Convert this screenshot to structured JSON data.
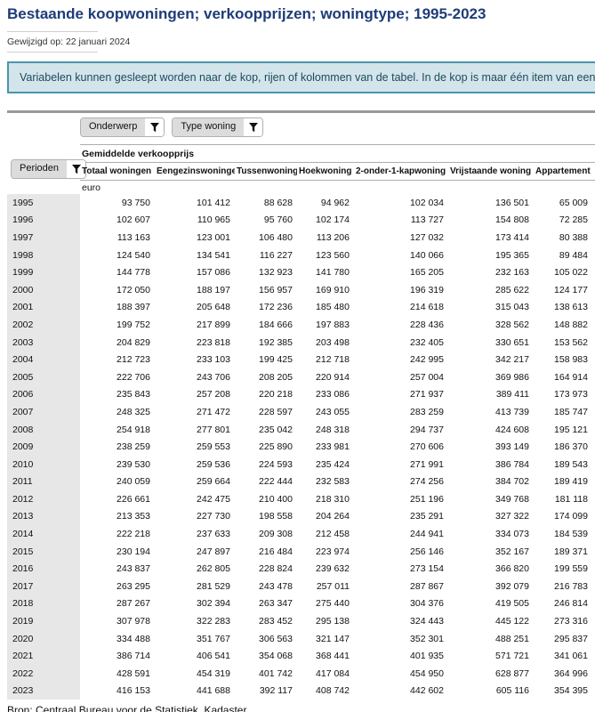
{
  "page": {
    "title": "Bestaande koopwoningen; verkoopprijzen; woningtype; 1995-2023",
    "modified": "Gewijzigd op: 22 januari 2024",
    "info_banner": "Variabelen kunnen gesleept worden naar de kop, rijen of kolommen van de tabel. In de kop is maar één item van een variabele te",
    "source": "Bron: Centraal Bureau voor de Statistiek, Kadaster"
  },
  "filters": {
    "onderwerp_label": "Onderwerp",
    "type_woning_label": "Type woning",
    "perioden_label": "Perioden",
    "filter_icon": "funnel-icon"
  },
  "colors": {
    "title_blue": "#1d3c78",
    "info_bg": "#d3e5eb",
    "info_border": "#4796ad",
    "info_text": "#1d4a5e",
    "row_label_bg": "#e7e7e7",
    "chip_bg": "#dcdcdc",
    "separator": "#999999"
  },
  "table": {
    "group_header": "Gemiddelde verkoopprijs",
    "unit": "euro",
    "row_dimension": "Perioden",
    "columns": [
      "Totaal woningen",
      "Eengezinswoningen",
      "Tussenwoning",
      "Hoekwoning",
      "2-onder-1-kapwoning",
      "Vrijstaande woning",
      "Appartement"
    ],
    "rows": [
      {
        "year": "1995",
        "values": [
          "93 750",
          "101 412",
          "88 628",
          "94 962",
          "102 034",
          "136 501",
          "65 009"
        ]
      },
      {
        "year": "1996",
        "values": [
          "102 607",
          "110 965",
          "95 760",
          "102 174",
          "113 727",
          "154 808",
          "72 285"
        ]
      },
      {
        "year": "1997",
        "values": [
          "113 163",
          "123 001",
          "106 480",
          "113 206",
          "127 032",
          "173 414",
          "80 388"
        ]
      },
      {
        "year": "1998",
        "values": [
          "124 540",
          "134 541",
          "116 227",
          "123 560",
          "140 066",
          "195 365",
          "89 484"
        ]
      },
      {
        "year": "1999",
        "values": [
          "144 778",
          "157 086",
          "132 923",
          "141 780",
          "165 205",
          "232 163",
          "105 022"
        ]
      },
      {
        "year": "2000",
        "values": [
          "172 050",
          "188 197",
          "156 957",
          "169 910",
          "196 319",
          "285 622",
          "124 177"
        ]
      },
      {
        "year": "2001",
        "values": [
          "188 397",
          "205 648",
          "172 236",
          "185 480",
          "214 618",
          "315 043",
          "138 613"
        ]
      },
      {
        "year": "2002",
        "values": [
          "199 752",
          "217 899",
          "184 666",
          "197 883",
          "228 436",
          "328 562",
          "148 882"
        ]
      },
      {
        "year": "2003",
        "values": [
          "204 829",
          "223 818",
          "192 385",
          "203 498",
          "232 405",
          "330 651",
          "153 562"
        ]
      },
      {
        "year": "2004",
        "values": [
          "212 723",
          "233 103",
          "199 425",
          "212 718",
          "242 995",
          "342 217",
          "158 983"
        ]
      },
      {
        "year": "2005",
        "values": [
          "222 706",
          "243 706",
          "208 205",
          "220 914",
          "257 004",
          "369 986",
          "164 914"
        ]
      },
      {
        "year": "2006",
        "values": [
          "235 843",
          "257 208",
          "220 218",
          "233 086",
          "271 937",
          "389 411",
          "173 973"
        ]
      },
      {
        "year": "2007",
        "values": [
          "248 325",
          "271 472",
          "228 597",
          "243 055",
          "283 259",
          "413 739",
          "185 747"
        ]
      },
      {
        "year": "2008",
        "values": [
          "254 918",
          "277 801",
          "235 042",
          "248 318",
          "294 737",
          "424 608",
          "195 121"
        ]
      },
      {
        "year": "2009",
        "values": [
          "238 259",
          "259 553",
          "225 890",
          "233 981",
          "270 606",
          "393 149",
          "186 370"
        ]
      },
      {
        "year": "2010",
        "values": [
          "239 530",
          "259 536",
          "224 593",
          "235 424",
          "271 991",
          "386 784",
          "189 543"
        ]
      },
      {
        "year": "2011",
        "values": [
          "240 059",
          "259 664",
          "222 444",
          "232 583",
          "274 256",
          "384 702",
          "189 419"
        ]
      },
      {
        "year": "2012",
        "values": [
          "226 661",
          "242 475",
          "210 400",
          "218 310",
          "251 196",
          "349 768",
          "181 118"
        ]
      },
      {
        "year": "2013",
        "values": [
          "213 353",
          "227 730",
          "198 558",
          "204 264",
          "235 291",
          "327 322",
          "174 099"
        ]
      },
      {
        "year": "2014",
        "values": [
          "222 218",
          "237 633",
          "209 308",
          "212 458",
          "244 941",
          "334 073",
          "184 539"
        ]
      },
      {
        "year": "2015",
        "values": [
          "230 194",
          "247 897",
          "216 484",
          "223 974",
          "256 146",
          "352 167",
          "189 371"
        ]
      },
      {
        "year": "2016",
        "values": [
          "243 837",
          "262 805",
          "228 824",
          "239 632",
          "273 154",
          "366 820",
          "199 559"
        ]
      },
      {
        "year": "2017",
        "values": [
          "263 295",
          "281 529",
          "243 478",
          "257 011",
          "287 867",
          "392 079",
          "216 783"
        ]
      },
      {
        "year": "2018",
        "values": [
          "287 267",
          "302 394",
          "263 347",
          "275 440",
          "304 376",
          "419 505",
          "246 814"
        ]
      },
      {
        "year": "2019",
        "values": [
          "307 978",
          "322 283",
          "283 452",
          "295 138",
          "324 443",
          "445 122",
          "273 316"
        ]
      },
      {
        "year": "2020",
        "values": [
          "334 488",
          "351 767",
          "306 563",
          "321 147",
          "352 301",
          "488 251",
          "295 837"
        ]
      },
      {
        "year": "2021",
        "values": [
          "386 714",
          "406 541",
          "354 068",
          "368 441",
          "401 935",
          "571 721",
          "341 061"
        ]
      },
      {
        "year": "2022",
        "values": [
          "428 591",
          "454 319",
          "401 742",
          "417 084",
          "454 950",
          "628 877",
          "364 996"
        ]
      },
      {
        "year": "2023",
        "values": [
          "416 153",
          "441 688",
          "392 117",
          "408 742",
          "442 602",
          "605 116",
          "354 395"
        ]
      }
    ]
  }
}
